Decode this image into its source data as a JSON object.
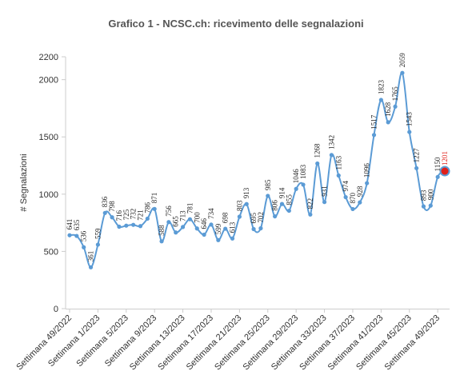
{
  "chart_data": {
    "type": "line",
    "title": "Grafico 1 - NCSC.ch: ricevimento delle segnalazioni",
    "ylabel": "# Segnalazioni",
    "xlabel": "",
    "ylim": [
      0,
      2200
    ],
    "yticks": [
      0,
      500,
      1000,
      1500,
      2000,
      2200
    ],
    "grid": false,
    "legend": "none",
    "colors": {
      "line": "#5b9bd5",
      "highlight": "#e0201a",
      "axis": "#cccccc",
      "text": "#333333"
    },
    "xtick_labels": [
      {
        "index": 0,
        "label": "Settimana 49/2022"
      },
      {
        "index": 4,
        "label": "Settimana 1/2023"
      },
      {
        "index": 8,
        "label": "Settimana 5/2023"
      },
      {
        "index": 12,
        "label": "Settimana 9/2023"
      },
      {
        "index": 16,
        "label": "Settimana 13/2023"
      },
      {
        "index": 20,
        "label": "Settimana 17/2023"
      },
      {
        "index": 24,
        "label": "Settimana 21/2023"
      },
      {
        "index": 28,
        "label": "Settimana 25/2023"
      },
      {
        "index": 32,
        "label": "Settimana 29/2023"
      },
      {
        "index": 36,
        "label": "Settimana 33/2023"
      },
      {
        "index": 40,
        "label": "Settimana 37/2023"
      },
      {
        "index": 44,
        "label": "Settimana 41/2023"
      },
      {
        "index": 48,
        "label": "Settimana 45/2023"
      },
      {
        "index": 52,
        "label": "Settimana 49/2023"
      }
    ],
    "series": [
      {
        "values": [
          641,
          635,
          536,
          361,
          559,
          836,
          798,
          716,
          725,
          732,
          721,
          786,
          871,
          588,
          756,
          665,
          713,
          781,
          700,
          646,
          734,
          599,
          698,
          613,
          803,
          913,
          695,
          702,
          985,
          806,
          914,
          855,
          1046,
          1083,
          822,
          1268,
          931,
          1342,
          1163,
          974,
          870,
          928,
          1096,
          1517,
          1823,
          1628,
          1765,
          2059,
          1543,
          1227,
          893,
          900,
          1150,
          1201
        ],
        "labels": [
          "641",
          "635",
          "536",
          "361",
          "559",
          "836",
          "798",
          "716",
          "725",
          "732",
          "721",
          "786",
          "871",
          "588",
          "756",
          "665",
          "713",
          "781",
          "700",
          "646",
          "734",
          "599",
          "698",
          "613",
          "803",
          "913",
          "695",
          "702",
          "985",
          "806",
          "914",
          "855",
          "1046",
          "1083",
          "822",
          "1268",
          "931",
          "1342",
          "1163",
          "974",
          "870",
          "928",
          "1096",
          "1517",
          "1823",
          "1628",
          "1765",
          "2059",
          "1543",
          "1227",
          "893",
          "900",
          "1150",
          "1201"
        ]
      }
    ]
  }
}
